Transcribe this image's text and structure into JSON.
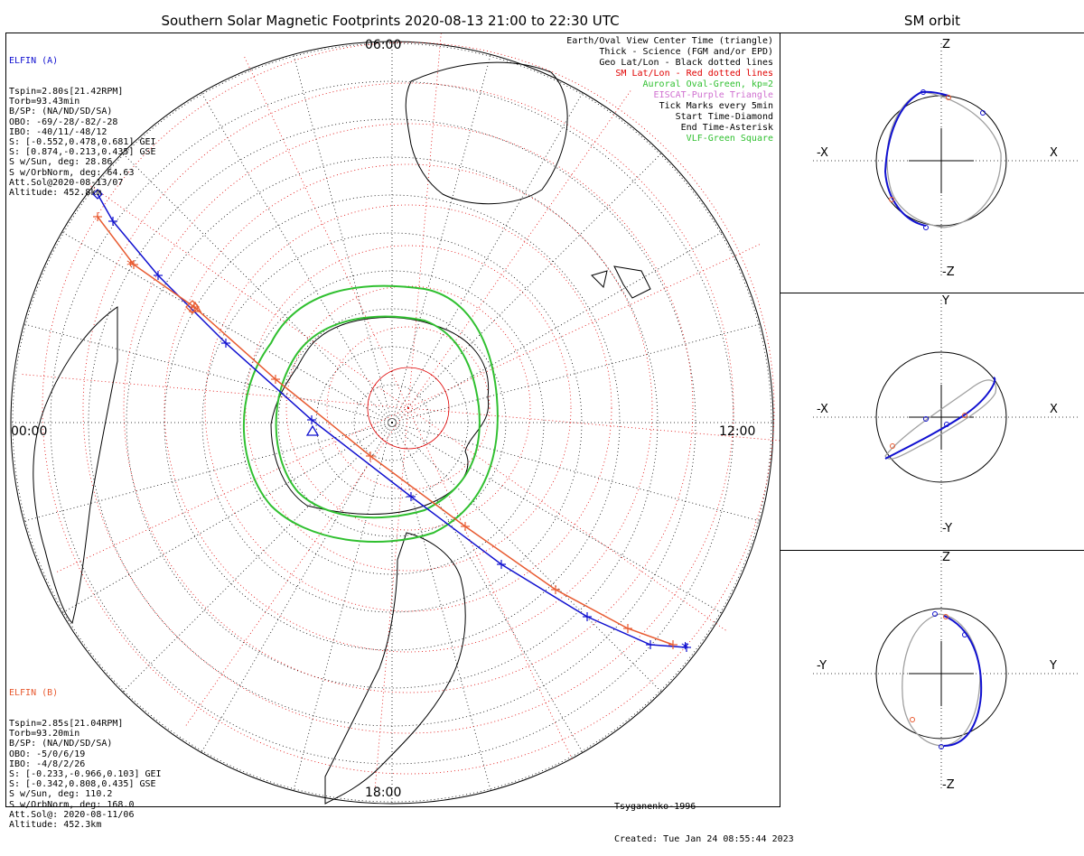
{
  "title": "Southern Solar Magnetic Footprints 2020-08-13 21:00 to 22:30 UTC",
  "sm_title": "SM orbit",
  "elfin_a": {
    "name": "ELFIN (A)",
    "lines": [
      "Tspin=2.80s[21.42RPM]",
      "Torb=93.43min",
      "B/SP: (NA/ND/SD/SA)",
      "OBO: -69/-28/-82/-28",
      "IBO: -40/11/-48/12",
      "S: [-0.552,0.478,0.681] GEI",
      "S: [0.874,-0.213,0.435] GSE",
      "S w/Sun, deg: 28.86",
      "S w/OrbNorm, deg: 64.63",
      "Att.Sol@2020-08-13/07",
      "Altitude: 452.8km"
    ],
    "color": "#1010d0"
  },
  "elfin_b": {
    "name": "ELFIN (B)",
    "lines": [
      "Tspin=2.85s[21.04RPM]",
      "Torb=93.20min",
      "B/SP: (NA/ND/SD/SA)",
      "OBO: -5/0/6/19",
      "IBO: -4/8/2/26",
      "S: [-0.233,-0.966,0.103] GEI",
      "S: [-0.342,0.808,0.435] GSE",
      "S w/Sun, deg: 110.2",
      "S w/OrbNorm, deg: 168.0",
      "Att.Sol@: 2020-08-11/06",
      "Altitude: 452.3km"
    ],
    "color": "#e85a30"
  },
  "legend": [
    {
      "text": "Earth/Oval View Center Time (triangle)",
      "color": "#000000"
    },
    {
      "text": "Thick - Science (FGM and/or EPD)",
      "color": "#000000"
    },
    {
      "text": "Geo Lat/Lon - Black dotted lines",
      "color": "#000000"
    },
    {
      "text": "SM Lat/Lon - Red dotted lines",
      "color": "#e00000"
    },
    {
      "text": "Auroral Oval-Green, kp=2",
      "color": "#30c030"
    },
    {
      "text": "EISCAT-Purple Triangle",
      "color": "#d070d0"
    },
    {
      "text": "Tick Marks every 5min",
      "color": "#000000"
    },
    {
      "text": "Start Time-Diamond",
      "color": "#000000"
    },
    {
      "text": "End Time-Asterisk",
      "color": "#000000"
    },
    {
      "text": "VLF-Green Square",
      "color": "#30c030"
    }
  ],
  "time_labels": {
    "left": "00:00",
    "right": "12:00",
    "bottom": "18:00",
    "top": "06:00"
  },
  "footer": {
    "model": "Tsyganenko-1996",
    "created": "Created: Tue Jan 24 08:55:44 2023"
  },
  "orbit_panels": [
    {
      "h_neg": "-X",
      "h_pos": "X",
      "v_pos": "Z",
      "v_neg": "-Z"
    },
    {
      "h_neg": "-X",
      "h_pos": "X",
      "v_pos": "Y",
      "v_neg": "-Y"
    },
    {
      "h_neg": "-Y",
      "h_pos": "Y",
      "v_pos": "Z",
      "v_neg": "-Z"
    }
  ],
  "colors": {
    "oval": "#30c030",
    "sm_grid": "#e00000",
    "geo_grid": "#000000",
    "track_a": "#1010d0",
    "track_b": "#e85a30",
    "orbit_gray": "#a0a0a0"
  }
}
